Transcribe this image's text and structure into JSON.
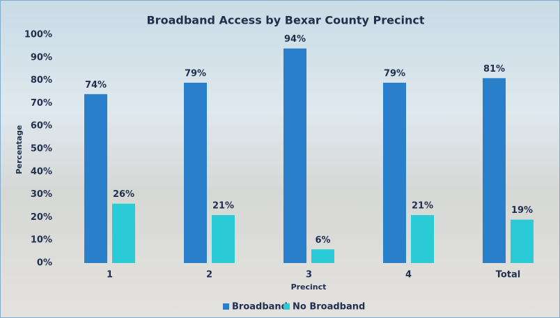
{
  "chart_data": {
    "type": "bar",
    "title": "Broadband Access by Bexar County Precinct",
    "x_label": "Precinct",
    "y_label": "Percentage",
    "categories": [
      "1",
      "2",
      "3",
      "4",
      "Total"
    ],
    "series": [
      {
        "name": "Broadband",
        "color": "#2a7fcb",
        "values": [
          74,
          79,
          94,
          79,
          81
        ],
        "value_labels": [
          "74%",
          "79%",
          "94%",
          "79%",
          "81%"
        ]
      },
      {
        "name": "No Broadband",
        "color": "#2acbd6",
        "values": [
          26,
          21,
          6,
          21,
          19
        ],
        "value_labels": [
          "26%",
          "21%",
          "6%",
          "21%",
          "19%"
        ]
      }
    ],
    "ylim": [
      0,
      100
    ],
    "yticks": [
      {
        "value": 0,
        "label": "0%"
      },
      {
        "value": 10,
        "label": "10%"
      },
      {
        "value": 20,
        "label": "20%"
      },
      {
        "value": 30,
        "label": "30%"
      },
      {
        "value": 40,
        "label": "40%"
      },
      {
        "value": 50,
        "label": "50%"
      },
      {
        "value": 60,
        "label": "60%"
      },
      {
        "value": 70,
        "label": "70%"
      },
      {
        "value": 80,
        "label": "80%"
      },
      {
        "value": 90,
        "label": "90%"
      },
      {
        "value": 100,
        "label": "100%"
      }
    ],
    "legend": "bottom",
    "grid": false
  }
}
